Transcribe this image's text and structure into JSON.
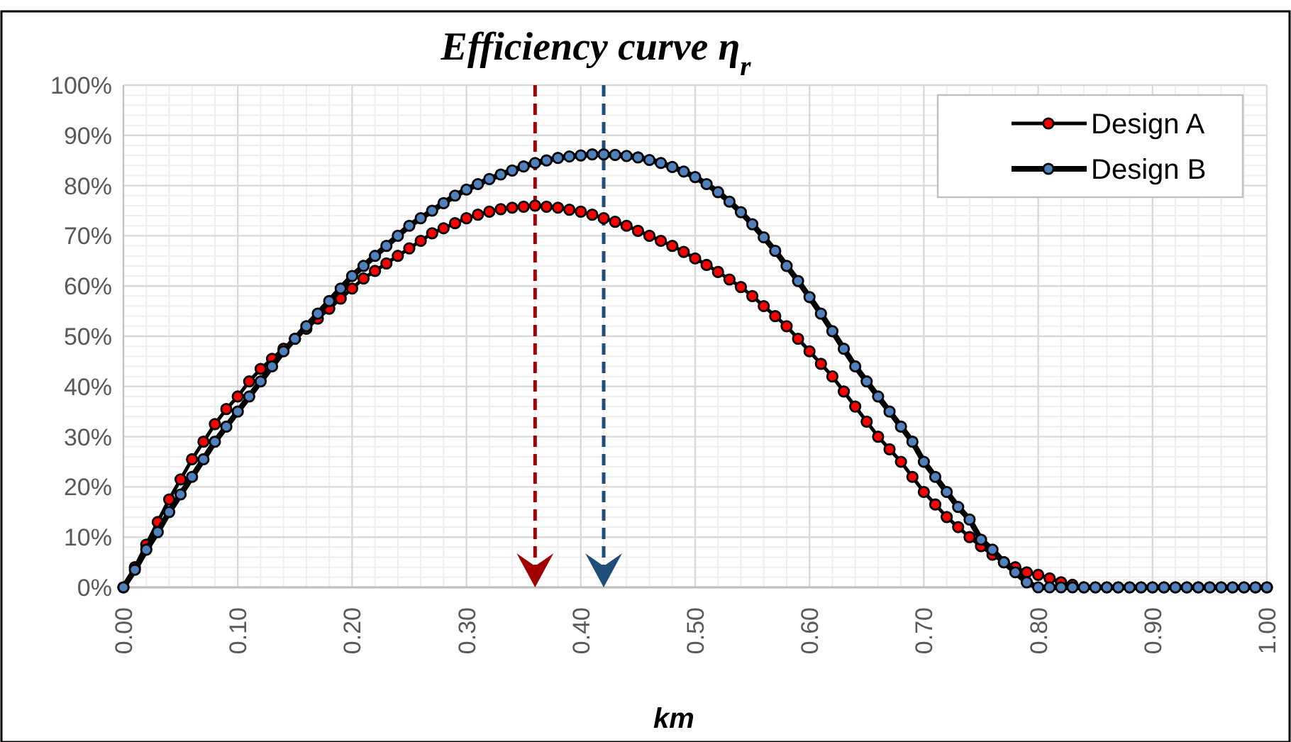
{
  "chart_data": {
    "type": "line",
    "title": "Efficiency curve η$_{r}$",
    "xlabel": "km",
    "x": [
      0,
      0.01,
      0.02,
      0.03,
      0.04,
      0.05,
      0.06,
      0.07,
      0.08,
      0.09,
      0.1,
      0.11,
      0.12,
      0.13,
      0.14,
      0.15,
      0.16,
      0.17,
      0.18,
      0.19,
      0.2,
      0.21,
      0.22,
      0.23,
      0.24,
      0.25,
      0.26,
      0.27,
      0.28,
      0.29,
      0.3,
      0.31,
      0.32,
      0.33,
      0.34,
      0.35,
      0.36,
      0.37,
      0.38,
      0.39,
      0.4,
      0.41,
      0.42,
      0.43,
      0.44,
      0.45,
      0.46,
      0.47,
      0.48,
      0.49,
      0.5,
      0.51,
      0.52,
      0.53,
      0.54,
      0.55,
      0.56,
      0.57,
      0.58,
      0.59,
      0.6,
      0.61,
      0.62,
      0.63,
      0.64,
      0.65,
      0.66,
      0.67,
      0.68,
      0.69,
      0.7,
      0.71,
      0.72,
      0.73,
      0.74,
      0.75,
      0.76,
      0.77,
      0.78,
      0.79,
      0.8,
      0.81,
      0.82,
      0.83,
      0.84,
      0.85,
      0.86,
      0.87,
      0.88,
      0.89,
      0.9,
      0.91,
      0.92,
      0.93,
      0.94,
      0.95,
      0.96,
      0.97,
      0.98,
      0.99,
      1
    ],
    "series": [
      {
        "name": "Design A",
        "color": "#ff0000",
        "values": [
          0,
          4,
          8.5,
          13,
          17.5,
          21.5,
          25.5,
          29,
          32.5,
          35.5,
          38,
          41,
          43.5,
          45.5,
          47.5,
          49.5,
          51.5,
          53.5,
          55.5,
          57.5,
          59.5,
          61.5,
          63,
          64.5,
          66,
          67.5,
          69,
          70.5,
          71.5,
          72.5,
          73.5,
          74.2,
          74.8,
          75.3,
          75.6,
          75.8,
          76,
          75.8,
          75.6,
          75.2,
          74.8,
          74.2,
          73.5,
          72.8,
          72,
          71,
          70,
          69,
          68,
          66.8,
          65.5,
          64.2,
          62.8,
          61.3,
          59.8,
          58,
          56,
          54,
          52,
          49.5,
          47,
          44.5,
          42,
          39,
          36,
          33,
          30,
          27.5,
          25,
          22,
          19,
          16.5,
          14,
          12,
          10,
          8.2,
          6.5,
          5,
          4,
          3,
          2.5,
          1.8,
          1,
          0.5,
          0,
          0,
          0,
          0,
          0,
          0,
          0,
          0,
          0,
          0,
          0,
          0,
          0,
          0,
          0,
          0,
          0
        ]
      },
      {
        "name": "Design B",
        "color": "#4f81bd",
        "values": [
          0,
          3.5,
          7.5,
          11,
          15,
          18.5,
          22,
          25.5,
          29,
          32,
          35,
          38,
          41,
          44,
          47,
          49.5,
          52,
          54.5,
          57,
          59.5,
          62,
          64,
          66,
          68,
          70,
          72,
          73.5,
          75,
          76.5,
          78,
          79.2,
          80.3,
          81.3,
          82.2,
          83,
          83.8,
          84.5,
          85,
          85.5,
          85.8,
          86,
          86.2,
          86.2,
          86.1,
          85.9,
          85.6,
          85.1,
          84.5,
          83.7,
          82.8,
          81.7,
          80.3,
          78.7,
          76.8,
          74.7,
          72.3,
          69.7,
          67,
          64,
          61,
          57.8,
          54.5,
          51,
          47.5,
          44,
          41,
          38,
          35,
          32,
          29,
          25,
          22,
          19,
          16,
          13.5,
          9.5,
          7.5,
          5,
          3,
          1,
          0,
          0,
          0,
          0,
          0,
          0,
          0,
          0,
          0,
          0,
          0,
          0,
          0,
          0,
          0,
          0,
          0,
          0,
          0,
          0,
          0
        ]
      }
    ],
    "xlim": [
      0,
      1
    ],
    "xticks": [
      {
        "value": 0,
        "label": "0.00"
      },
      {
        "value": 0.1,
        "label": "0.10"
      },
      {
        "value": 0.2,
        "label": "0.20"
      },
      {
        "value": 0.3,
        "label": "0.30"
      },
      {
        "value": 0.4,
        "label": "0.40"
      },
      {
        "value": 0.5,
        "label": "0.50"
      },
      {
        "value": 0.6,
        "label": "0.60"
      },
      {
        "value": 0.7,
        "label": "0.70"
      },
      {
        "value": 0.8,
        "label": "0.80"
      },
      {
        "value": 0.9,
        "label": "0.90"
      },
      {
        "value": 1,
        "label": "1.00"
      }
    ],
    "ylim": [
      0,
      100
    ],
    "yticks": [
      {
        "value": 0,
        "label": "0%"
      },
      {
        "value": 10,
        "label": "10%"
      },
      {
        "value": 20,
        "label": "20%"
      },
      {
        "value": 30,
        "label": "30%"
      },
      {
        "value": 40,
        "label": "40%"
      },
      {
        "value": 50,
        "label": "50%"
      },
      {
        "value": 60,
        "label": "60%"
      },
      {
        "value": 70,
        "label": "70%"
      },
      {
        "value": 80,
        "label": "80%"
      },
      {
        "value": 90,
        "label": "90%"
      },
      {
        "value": 100,
        "label": "100%"
      }
    ],
    "ref_lines": [
      {
        "axis": "x",
        "value": 0.36,
        "color": "#a00000",
        "line_style": "dashed"
      },
      {
        "axis": "x",
        "value": 0.42,
        "color": "#1f4e79",
        "line_style": "dashed"
      }
    ],
    "grid": true,
    "legend": "top right",
    "marker": "circle",
    "line_style": "solid"
  }
}
